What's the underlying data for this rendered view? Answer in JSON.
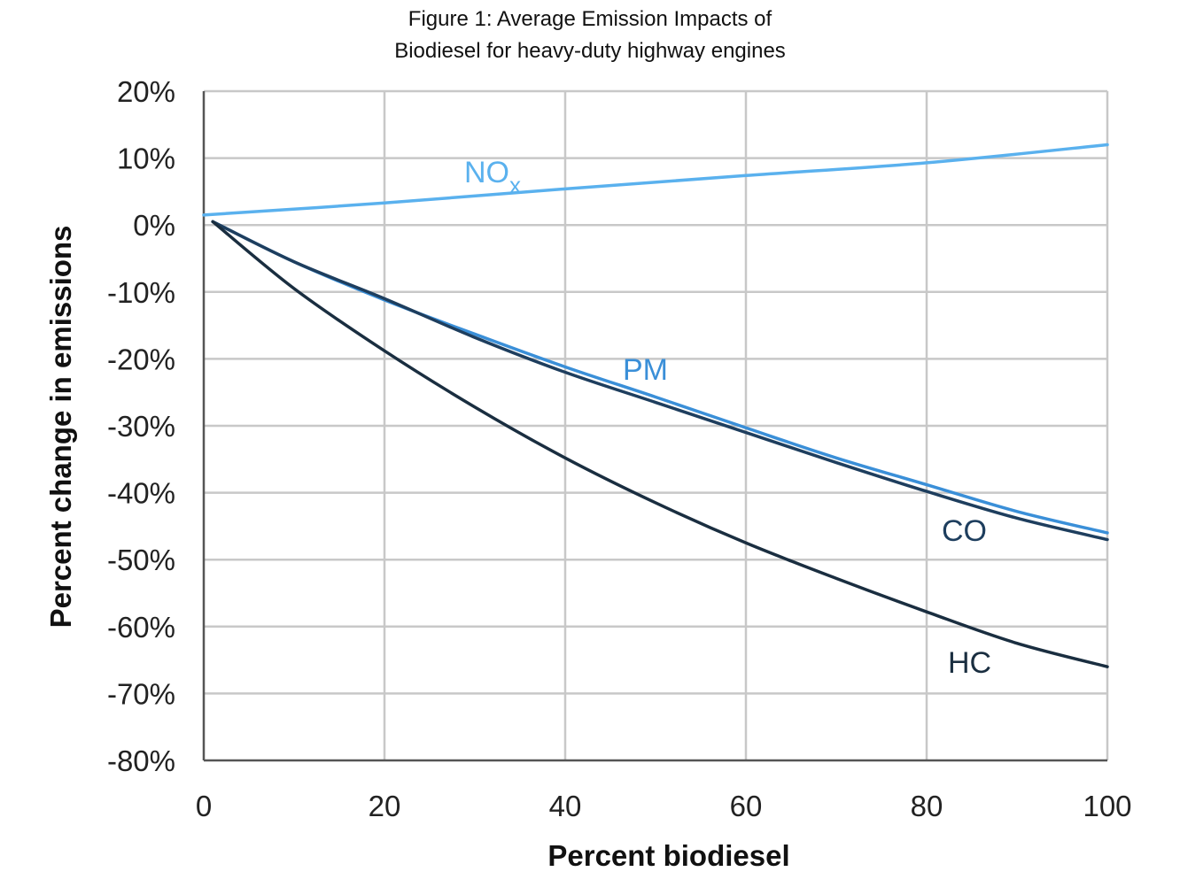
{
  "chart_data": {
    "type": "line",
    "title": [
      "Figure 1: Average Emission Impacts of",
      "Biodiesel for heavy-duty highway engines"
    ],
    "xlabel": "Percent biodiesel",
    "ylabel": "Percent change in emissions",
    "xlim": [
      0,
      100
    ],
    "ylim": [
      -80,
      20
    ],
    "x_ticks": [
      0,
      20,
      40,
      60,
      80,
      100
    ],
    "y_ticks": [
      20,
      10,
      0,
      -10,
      -20,
      -30,
      -40,
      -50,
      -60,
      -70,
      -80
    ],
    "x_tick_labels": [
      "0",
      "20",
      "40",
      "60",
      "80",
      "100"
    ],
    "y_tick_labels": [
      "20%",
      "10%",
      "0%",
      "-10%",
      "-20%",
      "-30%",
      "-40%",
      "-50%",
      "-60%",
      "-70%",
      "-80%"
    ],
    "grid": true,
    "series": [
      {
        "name": "NO",
        "name_subscript": "x",
        "color": "#5ab1ee",
        "x": [
          0,
          20,
          40,
          60,
          80,
          100
        ],
        "y": [
          1.5,
          3.3,
          5.4,
          7.4,
          9.3,
          12.0
        ]
      },
      {
        "name": "PM",
        "color": "#3a8fd8",
        "x": [
          1,
          10,
          20,
          30,
          40,
          50,
          60,
          70,
          80,
          90,
          100
        ],
        "y": [
          0.5,
          -5.5,
          -11.2,
          -16.3,
          -21.2,
          -25.7,
          -30.3,
          -34.8,
          -38.8,
          -42.8,
          -46.0
        ]
      },
      {
        "name": "CO",
        "color": "#1e3e5e",
        "x": [
          1,
          10,
          20,
          30,
          40,
          50,
          60,
          70,
          80,
          90,
          100
        ],
        "y": [
          0.5,
          -5.5,
          -11.0,
          -16.8,
          -22.0,
          -26.5,
          -31.0,
          -35.5,
          -39.8,
          -43.8,
          -47.0
        ]
      },
      {
        "name": "HC",
        "color": "#1a2e40",
        "x": [
          1,
          10,
          20,
          30,
          40,
          50,
          60,
          70,
          80,
          90,
          100
        ],
        "y": [
          0.5,
          -9.5,
          -18.8,
          -27.2,
          -34.8,
          -41.5,
          -47.5,
          -52.8,
          -57.8,
          -62.5,
          -66.0
        ]
      }
    ]
  }
}
